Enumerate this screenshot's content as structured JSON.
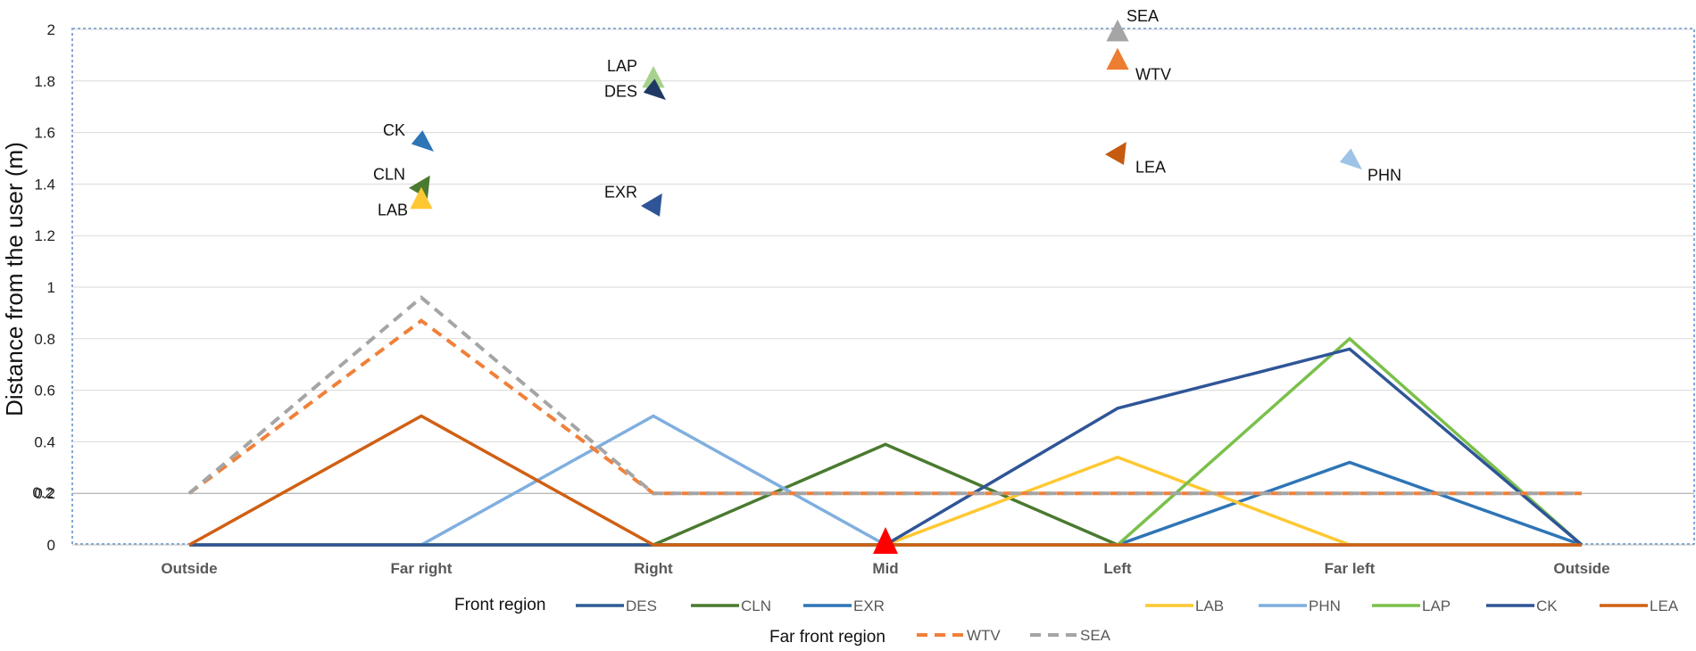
{
  "chart_data": {
    "type": "line",
    "ylabel": "Distance from the user (m)",
    "ylim": [
      0,
      2
    ],
    "yticks": [
      0,
      0.2,
      0.4,
      0.6,
      0.8,
      1,
      1.2,
      1.4,
      1.6,
      1.8,
      2
    ],
    "ytick_labels": [
      "0",
      "0.2",
      "0.4",
      "0.6",
      "0.8",
      "1",
      "1.2",
      "1.4",
      "1.6",
      "1.8",
      "2"
    ],
    "overlap_tick_label": "0.2",
    "categories": [
      "Outside",
      "Far right",
      "Right",
      "Mid",
      "Left",
      "Far left",
      "Outside"
    ],
    "series": [
      {
        "name": "DES",
        "group": "front",
        "color": "#2E5C94",
        "dashed": false,
        "values": [
          0,
          0,
          0,
          0,
          0,
          0,
          0
        ]
      },
      {
        "name": "CLN",
        "group": "front",
        "color": "#4A7A2F",
        "dashed": false,
        "values": [
          0,
          0,
          0,
          0.39,
          0,
          0,
          0
        ]
      },
      {
        "name": "EXR",
        "group": "front",
        "color": "#2E75B6",
        "dashed": false,
        "values": [
          0,
          0,
          0,
          0,
          0,
          0.32,
          0
        ]
      },
      {
        "name": "LAB",
        "group": "front",
        "color": "#FFC832",
        "dashed": false,
        "values": [
          0,
          0,
          0,
          0,
          0.34,
          0,
          0
        ]
      },
      {
        "name": "PHN",
        "group": "front",
        "color": "#7FAFDF",
        "dashed": false,
        "values": [
          0,
          0,
          0.5,
          0,
          0,
          0,
          0
        ]
      },
      {
        "name": "LAP",
        "group": "front",
        "color": "#7AC04A",
        "dashed": false,
        "values": [
          0,
          0,
          0,
          0,
          0,
          0.8,
          0
        ]
      },
      {
        "name": "CK",
        "group": "front",
        "color": "#2F5597",
        "dashed": false,
        "values": [
          0,
          0,
          0,
          0,
          0.53,
          0.76,
          0
        ]
      },
      {
        "name": "LEA",
        "group": "front",
        "color": "#D06014",
        "dashed": false,
        "values": [
          0,
          0.5,
          0,
          0,
          0,
          0,
          0
        ]
      },
      {
        "name": "WTV",
        "group": "far",
        "color": "#F0803A",
        "dashed": true,
        "values": [
          0.2,
          0.87,
          0.2,
          0.2,
          0.2,
          0.2,
          0.2
        ]
      },
      {
        "name": "SEA",
        "group": "far",
        "color": "#A5A5A5",
        "dashed": true,
        "values": [
          0.2,
          0.96,
          0.2,
          0.2,
          0.2,
          0.2,
          0.2
        ]
      }
    ],
    "user_marker": {
      "category": "Mid",
      "value": 0,
      "color": "#FF0000"
    },
    "markers": [
      {
        "label": "CK",
        "x_index": 1,
        "y": 1.56,
        "color": "#2E75B6",
        "dir": "right",
        "label_side": "left-up"
      },
      {
        "label": "CLN",
        "x_index": 1,
        "y": 1.39,
        "color": "#4A7A2F",
        "dir": "left",
        "label_side": "left-up"
      },
      {
        "label": "LAB",
        "x_index": 1,
        "y": 1.34,
        "color": "#FFC832",
        "dir": "up",
        "label_side": "left-down"
      },
      {
        "label": "LAP",
        "x_index": 2,
        "y": 1.81,
        "color": "#A9D18E",
        "dir": "up",
        "label_side": "left-up"
      },
      {
        "label": "DES",
        "x_index": 2,
        "y": 1.76,
        "color": "#1F3864",
        "dir": "right",
        "label_side": "left"
      },
      {
        "label": "EXR",
        "x_index": 2,
        "y": 1.32,
        "color": "#2F5597",
        "dir": "left",
        "label_side": "left-up"
      },
      {
        "label": "SEA",
        "x_index": 4,
        "y": 1.99,
        "color": "#A5A5A5",
        "dir": "up",
        "label_side": "right-up"
      },
      {
        "label": "WTV",
        "x_index": 4,
        "y": 1.88,
        "color": "#ED7D31",
        "dir": "up",
        "label_side": "right-down"
      },
      {
        "label": "LEA",
        "x_index": 4,
        "y": 1.52,
        "color": "#C55A11",
        "dir": "left",
        "label_side": "right-down"
      },
      {
        "label": "PHN",
        "x_index": 5,
        "y": 1.49,
        "color": "#9DC3E6",
        "dir": "right",
        "label_side": "right-down"
      }
    ],
    "legend": {
      "front_title": "Front region",
      "far_title": "Far front region",
      "front_items": [
        "DES",
        "CLN",
        "EXR",
        "LAB",
        "PHN",
        "LAP",
        "CK",
        "LEA"
      ],
      "far_items": [
        "WTV",
        "SEA"
      ]
    }
  }
}
